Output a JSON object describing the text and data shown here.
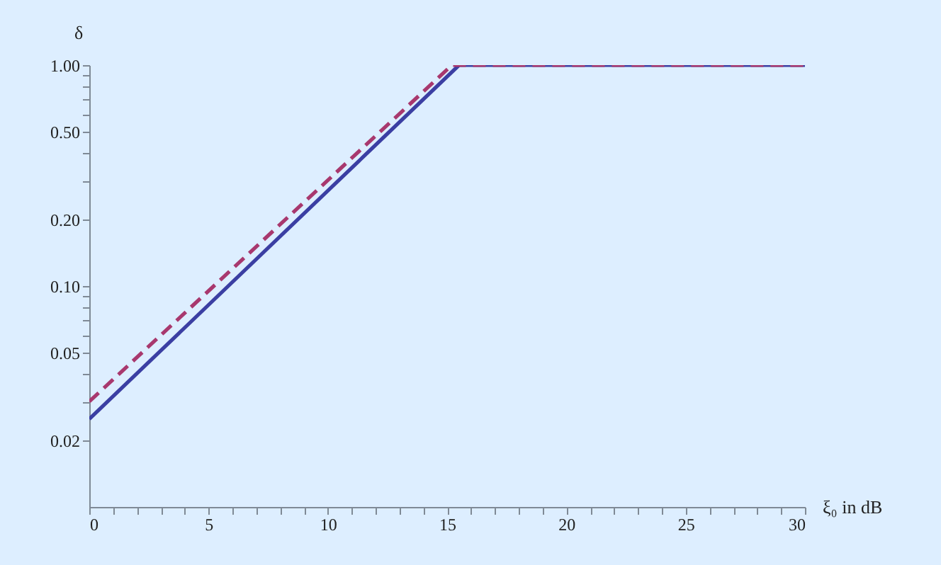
{
  "chart_data": {
    "type": "line",
    "xlabel": "ξ₀ in dB",
    "ylabel": "δ",
    "log": "y",
    "grid": false,
    "marker": "none",
    "xlim": [
      0,
      30
    ],
    "ylim": [
      0.01,
      1
    ],
    "xticks": [
      0,
      {
        "value": 1,
        "label": null
      },
      {
        "value": 2,
        "label": null
      },
      {
        "value": 3,
        "label": null
      },
      {
        "value": 4,
        "label": null
      },
      5,
      {
        "value": 6,
        "label": null
      },
      {
        "value": 7,
        "label": null
      },
      {
        "value": 8,
        "label": null
      },
      {
        "value": 9,
        "label": null
      },
      10,
      {
        "value": 11,
        "label": null
      },
      {
        "value": 12,
        "label": null
      },
      {
        "value": 13,
        "label": null
      },
      {
        "value": 14,
        "label": null
      },
      15,
      {
        "value": 16,
        "label": null
      },
      {
        "value": 17,
        "label": null
      },
      {
        "value": 18,
        "label": null
      },
      {
        "value": 19,
        "label": null
      },
      20,
      {
        "value": 21,
        "label": null
      },
      {
        "value": 22,
        "label": null
      },
      {
        "value": 23,
        "label": null
      },
      {
        "value": 24,
        "label": null
      },
      25,
      {
        "value": 26,
        "label": null
      },
      {
        "value": 27,
        "label": null
      },
      {
        "value": 28,
        "label": null
      },
      {
        "value": 29,
        "label": null
      },
      30
    ],
    "yticks": [
      {
        "value": 0.02,
        "label": "0.02"
      },
      {
        "value": 0.03,
        "label": null
      },
      {
        "value": 0.04,
        "label": null
      },
      {
        "value": 0.05,
        "label": "0.05"
      },
      {
        "value": 0.06,
        "label": null
      },
      {
        "value": 0.07,
        "label": null
      },
      {
        "value": 0.08,
        "label": null
      },
      {
        "value": 0.09,
        "label": null
      },
      {
        "value": 0.1,
        "label": "0.10"
      },
      {
        "value": 0.2,
        "label": "0.20"
      },
      {
        "value": 0.3,
        "label": null
      },
      {
        "value": 0.4,
        "label": null
      },
      {
        "value": 0.5,
        "label": "0.50"
      },
      {
        "value": 0.6,
        "label": null
      },
      {
        "value": 0.7,
        "label": null
      },
      {
        "value": 0.8,
        "label": null
      },
      {
        "value": 0.9,
        "label": null
      },
      {
        "value": 1,
        "label": "1.00"
      }
    ],
    "series": [
      {
        "color": "#3b3fa3",
        "line_style": "solid",
        "x": [
          0,
          15.5,
          30
        ],
        "values": [
          0.025,
          1,
          1
        ]
      },
      {
        "color": "#a8386e",
        "line_style": "dashed",
        "x": [
          0,
          15.2,
          30
        ],
        "values": [
          0.03,
          1,
          1
        ]
      }
    ]
  }
}
